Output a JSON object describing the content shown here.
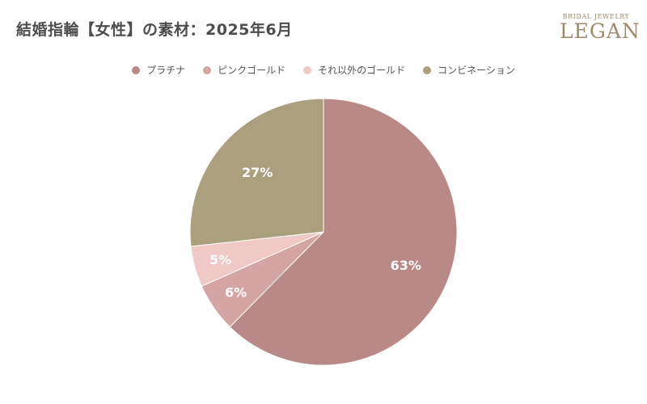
{
  "chart_data": {
    "type": "pie",
    "title": "結婚指輪【女性】の素材：2025年6月",
    "legend_position": "top",
    "slices": [
      {
        "name": "プラチナ",
        "value": 63,
        "label": "63%",
        "color": "#b88987"
      },
      {
        "name": "ピンクゴールド",
        "value": 6,
        "label": "6%",
        "color": "#d4a5a3"
      },
      {
        "name": "それ以外のゴールド",
        "value": 5,
        "label": "5%",
        "color": "#f0c8c6"
      },
      {
        "name": "コンビネーション",
        "value": 27,
        "label": "27%",
        "color": "#aaa07e"
      }
    ]
  },
  "logo": {
    "top": "BRIDAL JEWELRY",
    "main": "LEGAN",
    "color": "#9c8a6a"
  }
}
